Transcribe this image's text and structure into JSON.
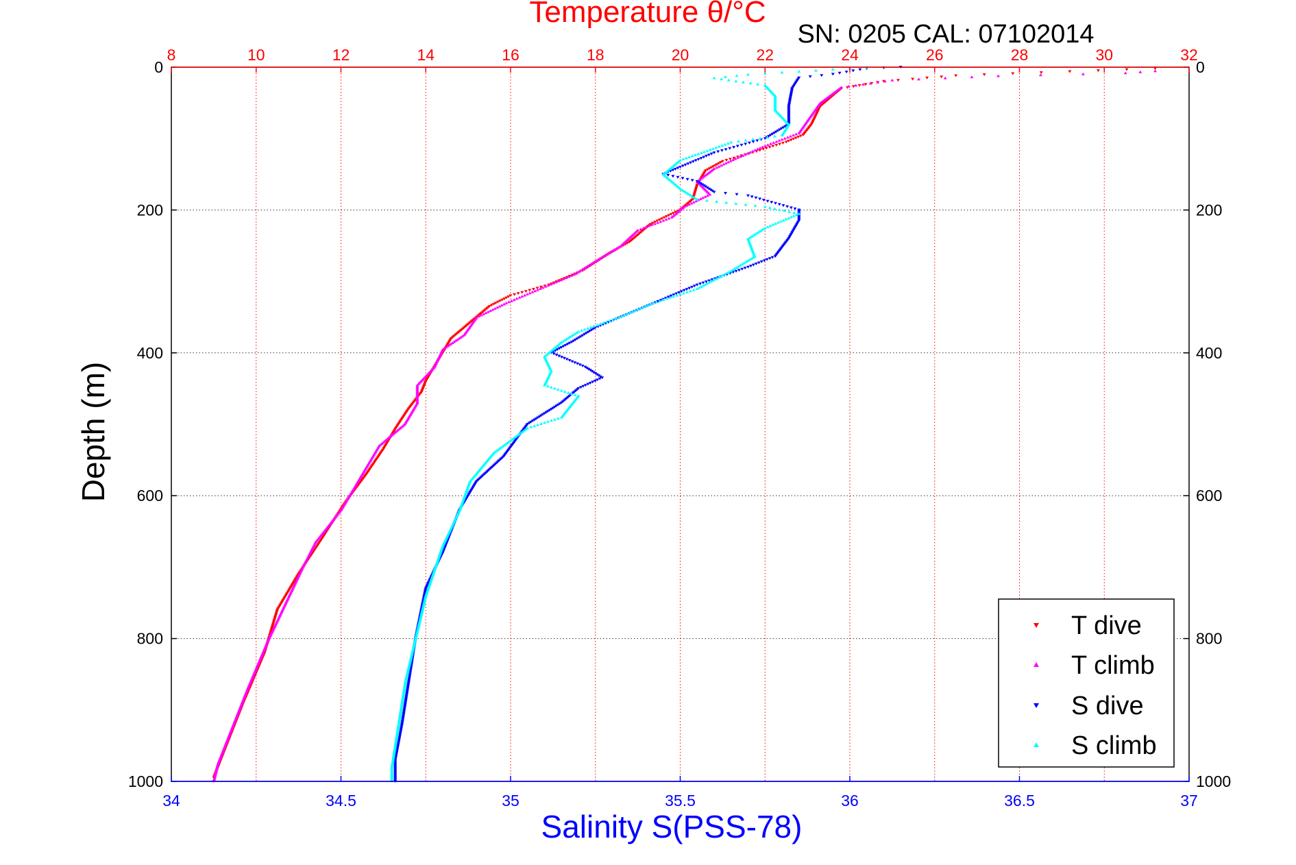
{
  "chart_data": {
    "type": "scatter",
    "title": "Temperature θ/°C",
    "subtitle": "SN: 0205  CAL: 07102014",
    "xlabel": "Salinity S(PSS-78)",
    "ylabel": "Depth (m)",
    "x_top_axis": {
      "label": "Temperature θ/°C",
      "range": [
        8,
        32
      ],
      "ticks": [
        8,
        10,
        12,
        14,
        16,
        18,
        20,
        22,
        24,
        26,
        28,
        30,
        32
      ],
      "color": "#ff0000"
    },
    "x_bottom_axis": {
      "label": "Salinity S(PSS-78)",
      "range": [
        34,
        37
      ],
      "ticks": [
        34,
        34.5,
        35,
        35.5,
        36,
        36.5,
        37
      ],
      "color": "#0000ff"
    },
    "y_axis": {
      "label": "Depth (m)",
      "range": [
        0,
        1000
      ],
      "reversed": true,
      "ticks": [
        0,
        200,
        400,
        600,
        800,
        1000
      ]
    },
    "grid": true,
    "legend_position": "bottom-right",
    "series": [
      {
        "name": "T dive",
        "axis": "temperature",
        "color": "#ff0000",
        "marker": "triangle-down",
        "points": [
          [
            31.2,
            2
          ],
          [
            26.5,
            12
          ],
          [
            24.8,
            20
          ],
          [
            23.8,
            30
          ],
          [
            23.3,
            55
          ],
          [
            23.1,
            80
          ],
          [
            22.9,
            95
          ],
          [
            22.5,
            105
          ],
          [
            21.8,
            118
          ],
          [
            21.0,
            132
          ],
          [
            20.6,
            145
          ],
          [
            20.4,
            165
          ],
          [
            20.3,
            185
          ],
          [
            20.0,
            200
          ],
          [
            19.3,
            220
          ],
          [
            18.8,
            245
          ],
          [
            18.3,
            262
          ],
          [
            17.7,
            285
          ],
          [
            16.9,
            305
          ],
          [
            16.0,
            320
          ],
          [
            15.5,
            335
          ],
          [
            15.1,
            355
          ],
          [
            14.6,
            380
          ],
          [
            14.3,
            410
          ],
          [
            14.0,
            440
          ],
          [
            13.9,
            455
          ],
          [
            13.6,
            478
          ],
          [
            13.3,
            505
          ],
          [
            13.0,
            535
          ],
          [
            12.6,
            570
          ],
          [
            12.1,
            610
          ],
          [
            11.5,
            665
          ],
          [
            11.0,
            710
          ],
          [
            10.5,
            760
          ],
          [
            10.2,
            820
          ],
          [
            9.7,
            890
          ],
          [
            9.3,
            950
          ],
          [
            9.0,
            995
          ]
        ]
      },
      {
        "name": "T climb",
        "axis": "temperature",
        "color": "#ff00ff",
        "marker": "triangle-up",
        "points": [
          [
            31.2,
            5
          ],
          [
            30.5,
            8
          ],
          [
            27.5,
            12
          ],
          [
            25.0,
            18
          ],
          [
            23.8,
            28
          ],
          [
            23.3,
            50
          ],
          [
            23.0,
            75
          ],
          [
            22.8,
            92
          ],
          [
            22.0,
            110
          ],
          [
            21.3,
            128
          ],
          [
            20.8,
            142
          ],
          [
            20.4,
            160
          ],
          [
            20.7,
            178
          ],
          [
            20.1,
            195
          ],
          [
            19.8,
            210
          ],
          [
            19.0,
            228
          ],
          [
            18.6,
            250
          ],
          [
            18.1,
            268
          ],
          [
            17.5,
            290
          ],
          [
            16.7,
            310
          ],
          [
            15.9,
            330
          ],
          [
            15.2,
            350
          ],
          [
            14.9,
            375
          ],
          [
            14.4,
            395
          ],
          [
            14.2,
            420
          ],
          [
            13.8,
            445
          ],
          [
            13.8,
            470
          ],
          [
            13.5,
            500
          ],
          [
            12.9,
            530
          ],
          [
            12.4,
            580
          ],
          [
            12.0,
            620
          ],
          [
            11.4,
            665
          ],
          [
            11.1,
            700
          ],
          [
            10.7,
            750
          ],
          [
            10.3,
            800
          ],
          [
            9.8,
            870
          ],
          [
            9.4,
            930
          ],
          [
            9.1,
            975
          ],
          [
            9.0,
            1000
          ]
        ]
      },
      {
        "name": "S dive",
        "axis": "salinity",
        "color": "#0000ff",
        "marker": "triangle-down",
        "points": [
          [
            36.15,
            0
          ],
          [
            36.05,
            2
          ],
          [
            35.95,
            10
          ],
          [
            35.85,
            15
          ],
          [
            35.83,
            30
          ],
          [
            35.82,
            55
          ],
          [
            35.82,
            80
          ],
          [
            35.75,
            100
          ],
          [
            35.6,
            120
          ],
          [
            35.5,
            140
          ],
          [
            35.45,
            150
          ],
          [
            35.55,
            160
          ],
          [
            35.6,
            175
          ],
          [
            35.7,
            180
          ],
          [
            35.85,
            200
          ],
          [
            35.85,
            215
          ],
          [
            35.82,
            240
          ],
          [
            35.78,
            265
          ],
          [
            35.7,
            280
          ],
          [
            35.55,
            305
          ],
          [
            35.45,
            325
          ],
          [
            35.35,
            345
          ],
          [
            35.25,
            365
          ],
          [
            35.18,
            385
          ],
          [
            35.12,
            400
          ],
          [
            35.22,
            420
          ],
          [
            35.27,
            435
          ],
          [
            35.2,
            450
          ],
          [
            35.15,
            470
          ],
          [
            35.05,
            500
          ],
          [
            34.98,
            545
          ],
          [
            34.9,
            580
          ],
          [
            34.85,
            620
          ],
          [
            34.8,
            680
          ],
          [
            34.75,
            730
          ],
          [
            34.72,
            800
          ],
          [
            34.7,
            860
          ],
          [
            34.68,
            920
          ],
          [
            34.66,
            970
          ],
          [
            34.66,
            1000
          ]
        ]
      },
      {
        "name": "S climb",
        "axis": "salinity",
        "color": "#00ffff",
        "marker": "triangle-up",
        "points": [
          [
            36.05,
            0
          ],
          [
            35.7,
            10
          ],
          [
            35.6,
            15
          ],
          [
            35.75,
            25
          ],
          [
            35.78,
            40
          ],
          [
            35.78,
            60
          ],
          [
            35.82,
            80
          ],
          [
            35.8,
            95
          ],
          [
            35.65,
            105
          ],
          [
            35.5,
            130
          ],
          [
            35.45,
            150
          ],
          [
            35.5,
            170
          ],
          [
            35.55,
            185
          ],
          [
            35.75,
            195
          ],
          [
            35.85,
            205
          ],
          [
            35.75,
            225
          ],
          [
            35.7,
            240
          ],
          [
            35.72,
            265
          ],
          [
            35.65,
            285
          ],
          [
            35.55,
            310
          ],
          [
            35.42,
            330
          ],
          [
            35.32,
            350
          ],
          [
            35.2,
            370
          ],
          [
            35.15,
            385
          ],
          [
            35.1,
            405
          ],
          [
            35.12,
            425
          ],
          [
            35.1,
            445
          ],
          [
            35.2,
            460
          ],
          [
            35.15,
            490
          ],
          [
            35.05,
            505
          ],
          [
            34.95,
            540
          ],
          [
            34.88,
            580
          ],
          [
            34.85,
            620
          ],
          [
            34.8,
            670
          ],
          [
            34.75,
            740
          ],
          [
            34.72,
            800
          ],
          [
            34.69,
            860
          ],
          [
            34.67,
            920
          ],
          [
            34.65,
            980
          ],
          [
            34.65,
            1000
          ]
        ]
      }
    ]
  }
}
